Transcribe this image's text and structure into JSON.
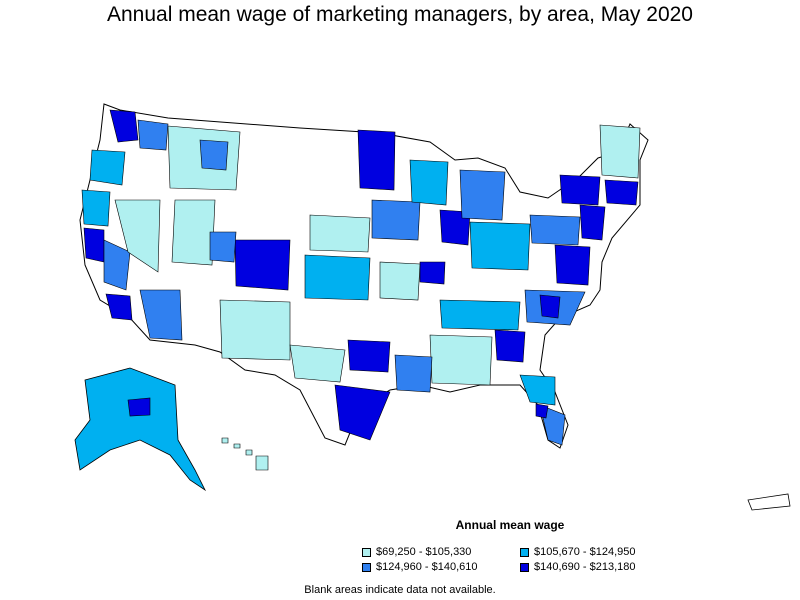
{
  "title": "Annual mean wage of marketing managers, by area, May 2020",
  "legend": {
    "title": "Annual mean wage",
    "items": [
      {
        "label": "$69,250 - $105,330",
        "color": "#b0f0f0"
      },
      {
        "label": "$105,670 - $124,950",
        "color": "#00b0f0"
      },
      {
        "label": "$124,960 - $140,610",
        "color": "#3080f0"
      },
      {
        "label": "$140,690 - $213,180",
        "color": "#0000e0"
      }
    ]
  },
  "note": "Blank areas indicate data not available."
}
